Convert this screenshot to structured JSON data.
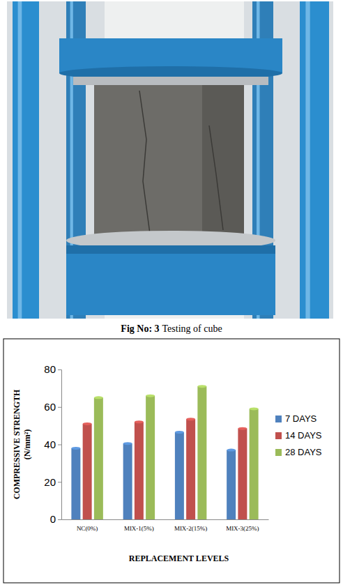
{
  "figure": {
    "caption_label": "Fig No: 3",
    "caption_text": "Testing of cube"
  },
  "chart_data": {
    "type": "bar",
    "y_label": "COMPRESSIVE STRENGTH (N/mm²)",
    "x_label": "REPLACEMENT LEVELS",
    "categories": [
      "NC(0%)",
      "MIX-1(5%)",
      "MIX-2(15%)",
      "MIX-3(25%)"
    ],
    "series": [
      {
        "name": "7 DAYS",
        "color": "#4f81bd",
        "values": [
          38,
          40.5,
          46.5,
          37
        ]
      },
      {
        "name": "14 DAYS",
        "color": "#c0504d",
        "values": [
          51,
          52,
          53.5,
          48.5
        ]
      },
      {
        "name": "28 DAYS",
        "color": "#9bbb59",
        "values": [
          65,
          66,
          71,
          59
        ]
      }
    ],
    "ylim": [
      0,
      80
    ],
    "yticks": [
      0,
      20,
      40,
      60,
      80
    ],
    "grid": false,
    "legend": "right"
  }
}
